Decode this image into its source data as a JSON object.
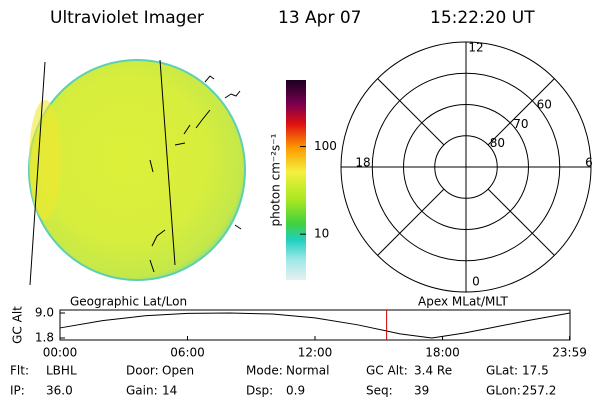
{
  "header": {
    "title": "Ultraviolet Imager",
    "date": "13 Apr 07",
    "time": "15:22:20 UT"
  },
  "colorbar": {
    "label": "photon cm⁻²s⁻¹",
    "log": true,
    "lim": [
      3,
      575
    ],
    "ticks": [
      10,
      100
    ]
  },
  "polar": {
    "lat_lim": [
      50,
      90
    ],
    "lat_rings": [
      60,
      70,
      80
    ],
    "mlt_ticks": [
      12,
      18,
      6,
      0
    ]
  },
  "chart_data": {
    "type": "line",
    "y_label": "GC Alt",
    "panel_labels": [
      "Geographic Lat/Lon",
      "Apex MLat/MLT"
    ],
    "x": [
      0,
      2,
      4,
      6,
      8,
      10,
      12,
      14,
      16,
      17.5,
      19,
      20,
      22,
      24
    ],
    "values": [
      4.7,
      6.8,
      8.2,
      8.9,
      9.0,
      8.7,
      7.6,
      5.6,
      3.0,
      1.8,
      3.2,
      4.4,
      6.8,
      9.0
    ],
    "color": "#000000",
    "current_x": 15.37,
    "current_color": "#cc0000",
    "xlim": [
      0,
      24
    ],
    "xticks": [
      {
        "value": 0,
        "label": "00:00"
      },
      {
        "value": 6,
        "label": "06:00"
      },
      {
        "value": 12,
        "label": "12:00"
      },
      {
        "value": 18,
        "label": "18:00"
      },
      {
        "value": 23.98,
        "label": "23:59"
      }
    ],
    "ylim": [
      1.8,
      9.0
    ],
    "yticks": [
      {
        "value": 9,
        "label": "9.0"
      },
      {
        "value": 1.8,
        "label": "1.8"
      }
    ]
  },
  "footer": {
    "rows": [
      [
        {
          "label": "Flt:",
          "value": "LBHL"
        },
        {
          "label": "Door:",
          "value": "Open"
        },
        {
          "label": "Mode:",
          "value": "Normal"
        },
        {
          "label": "GC Alt:",
          "value": "3.4 Re"
        },
        {
          "label": "GLat:",
          "value": "17.5"
        }
      ],
      [
        {
          "label": "IP:",
          "value": "36.0"
        },
        {
          "label": "Gain:",
          "value": "14"
        },
        {
          "label": "Dsp:",
          "value": "0.9"
        },
        {
          "label": "Seq:",
          "value": "39"
        },
        {
          "label": "GLon:",
          "value": "257.2"
        }
      ]
    ]
  }
}
